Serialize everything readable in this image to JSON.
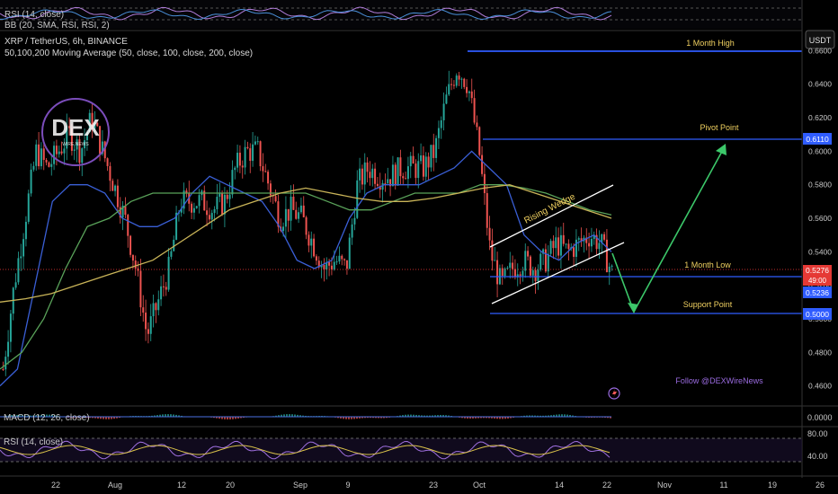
{
  "chart_data": {
    "type": "line",
    "symbol_title": "XRP / TetherUS, 6h, BINANCE",
    "ma_legend": "50,100,200 Moving Average (50, close, 100, close, 200, close)",
    "currency_button": "USDT",
    "watermark": "DEX",
    "watermark_sub": "WIRE NEWS",
    "follow_text": "Follow @DEXWireNews",
    "top_indicators": [
      "RSI (14, close)",
      "BB (20, SMA, RSI, RSI, 2)"
    ],
    "macd_label": "MACD (12, 26, close)",
    "rsi_label": "RSI (14, close)",
    "x_ticks": [
      "22",
      "Aug",
      "12",
      "20",
      "Sep",
      "9",
      "23",
      "Oct",
      "14",
      "22",
      "Nov",
      "11",
      "19",
      "26"
    ],
    "y_ticks": [
      0.66,
      0.64,
      0.62,
      0.6,
      0.58,
      0.56,
      0.54,
      0.52,
      0.5,
      0.48,
      0.46
    ],
    "y_tick_labels": [
      "0.6600",
      "0.6400",
      "0.6200",
      "0.6000",
      "0.5800",
      "0.5600",
      "0.5400",
      "0.5200",
      "0.5000",
      "0.4800",
      "0.4600"
    ],
    "ylim": [
      0.448,
      0.672
    ],
    "levels": [
      {
        "name": "1 Month High",
        "value": 0.6665
      },
      {
        "name": "Pivot Point",
        "value": 0.611,
        "tag": "0.6110"
      },
      {
        "name": "1 Month Low",
        "value": 0.5236,
        "tag": "0.5236"
      },
      {
        "name": "Support Point",
        "value": 0.5,
        "tag": "0.5000"
      }
    ],
    "price_tag": {
      "value": 0.5276,
      "label": "0.5276",
      "countdown": "49:00"
    },
    "pattern_label": "Rising Wedge",
    "price_series": [
      {
        "date": "Jul 14",
        "value": 0.47
      },
      {
        "date": "Jul 16",
        "value": 0.52
      },
      {
        "date": "Jul 18",
        "value": 0.56
      },
      {
        "date": "Jul 20",
        "value": 0.6
      },
      {
        "date": "Jul 22",
        "value": 0.59
      },
      {
        "date": "Jul 24",
        "value": 0.6
      },
      {
        "date": "Jul 26",
        "value": 0.61
      },
      {
        "date": "Jul 28",
        "value": 0.6
      },
      {
        "date": "Jul 30",
        "value": 0.62
      },
      {
        "date": "Aug 1",
        "value": 0.6
      },
      {
        "date": "Aug 2",
        "value": 0.58
      },
      {
        "date": "Aug 3",
        "value": 0.56
      },
      {
        "date": "Aug 4",
        "value": 0.53
      },
      {
        "date": "Aug 5",
        "value": 0.49
      },
      {
        "date": "Aug 6",
        "value": 0.51
      },
      {
        "date": "Aug 8",
        "value": 0.53
      },
      {
        "date": "Aug 10",
        "value": 0.57
      },
      {
        "date": "Aug 12",
        "value": 0.57
      },
      {
        "date": "Aug 14",
        "value": 0.57
      },
      {
        "date": "Aug 16",
        "value": 0.565
      },
      {
        "date": "Aug 18",
        "value": 0.57
      },
      {
        "date": "Aug 20",
        "value": 0.59
      },
      {
        "date": "Aug 22",
        "value": 0.6
      },
      {
        "date": "Aug 24",
        "value": 0.6
      },
      {
        "date": "Aug 26",
        "value": 0.58
      },
      {
        "date": "Aug 28",
        "value": 0.56
      },
      {
        "date": "Aug 30",
        "value": 0.565
      },
      {
        "date": "Sep 2",
        "value": 0.56
      },
      {
        "date": "Sep 4",
        "value": 0.545
      },
      {
        "date": "Sep 6",
        "value": 0.53
      },
      {
        "date": "Sep 8",
        "value": 0.535
      },
      {
        "date": "Sep 10",
        "value": 0.53
      },
      {
        "date": "Sep 12",
        "value": 0.58
      },
      {
        "date": "Sep 14",
        "value": 0.59
      },
      {
        "date": "Sep 16",
        "value": 0.585
      },
      {
        "date": "Sep 18",
        "value": 0.585
      },
      {
        "date": "Sep 20",
        "value": 0.59
      },
      {
        "date": "Sep 22",
        "value": 0.59
      },
      {
        "date": "Sep 24",
        "value": 0.59
      },
      {
        "date": "Sep 26",
        "value": 0.6
      },
      {
        "date": "Sep 28",
        "value": 0.63
      },
      {
        "date": "Sep 29",
        "value": 0.65
      },
      {
        "date": "Sep 30",
        "value": 0.64
      },
      {
        "date": "Oct 1",
        "value": 0.6
      },
      {
        "date": "Oct 2",
        "value": 0.54
      },
      {
        "date": "Oct 3",
        "value": 0.52
      },
      {
        "date": "Oct 4",
        "value": 0.53
      },
      {
        "date": "Oct 6",
        "value": 0.535
      },
      {
        "date": "Oct 8",
        "value": 0.53
      },
      {
        "date": "Oct 10",
        "value": 0.535
      },
      {
        "date": "Oct 12",
        "value": 0.545
      },
      {
        "date": "Oct 14",
        "value": 0.54
      },
      {
        "date": "Oct 16",
        "value": 0.545
      },
      {
        "date": "Oct 18",
        "value": 0.55
      },
      {
        "date": "Oct 20",
        "value": 0.545
      },
      {
        "date": "Oct 22",
        "value": 0.5276
      }
    ],
    "series": [
      {
        "values": [
          0.46,
          0.47,
          0.52,
          0.57,
          0.58,
          0.58,
          0.575,
          0.56,
          0.555,
          0.555,
          0.56,
          0.575,
          0.585,
          0.58,
          0.575,
          0.57,
          0.555,
          0.535,
          0.53,
          0.535,
          0.56,
          0.575,
          0.58,
          0.58,
          0.58,
          0.585,
          0.59,
          0.6,
          0.59,
          0.58,
          0.55,
          0.54,
          0.535,
          0.545,
          0.55,
          0.54
        ]
      },
      {
        "values": [
          0.47,
          0.48,
          0.5,
          0.53,
          0.555,
          0.56,
          0.57,
          0.575,
          0.575,
          0.575,
          0.575,
          0.575,
          0.575,
          0.575,
          0.575,
          0.57,
          0.565,
          0.565,
          0.57,
          0.575,
          0.575,
          0.575,
          0.58,
          0.58,
          0.578,
          0.575,
          0.57,
          0.565,
          0.562
        ]
      },
      {
        "values": [
          0.51,
          0.512,
          0.515,
          0.52,
          0.525,
          0.53,
          0.535,
          0.545,
          0.555,
          0.565,
          0.57,
          0.575,
          0.578,
          0.575,
          0.572,
          0.57,
          0.57,
          0.572,
          0.575,
          0.578,
          0.58,
          0.575,
          0.57,
          0.565,
          0.56
        ]
      }
    ],
    "macd_tick": "0.0000",
    "rsi_ticks": [
      "80.00",
      "40.00"
    ]
  }
}
